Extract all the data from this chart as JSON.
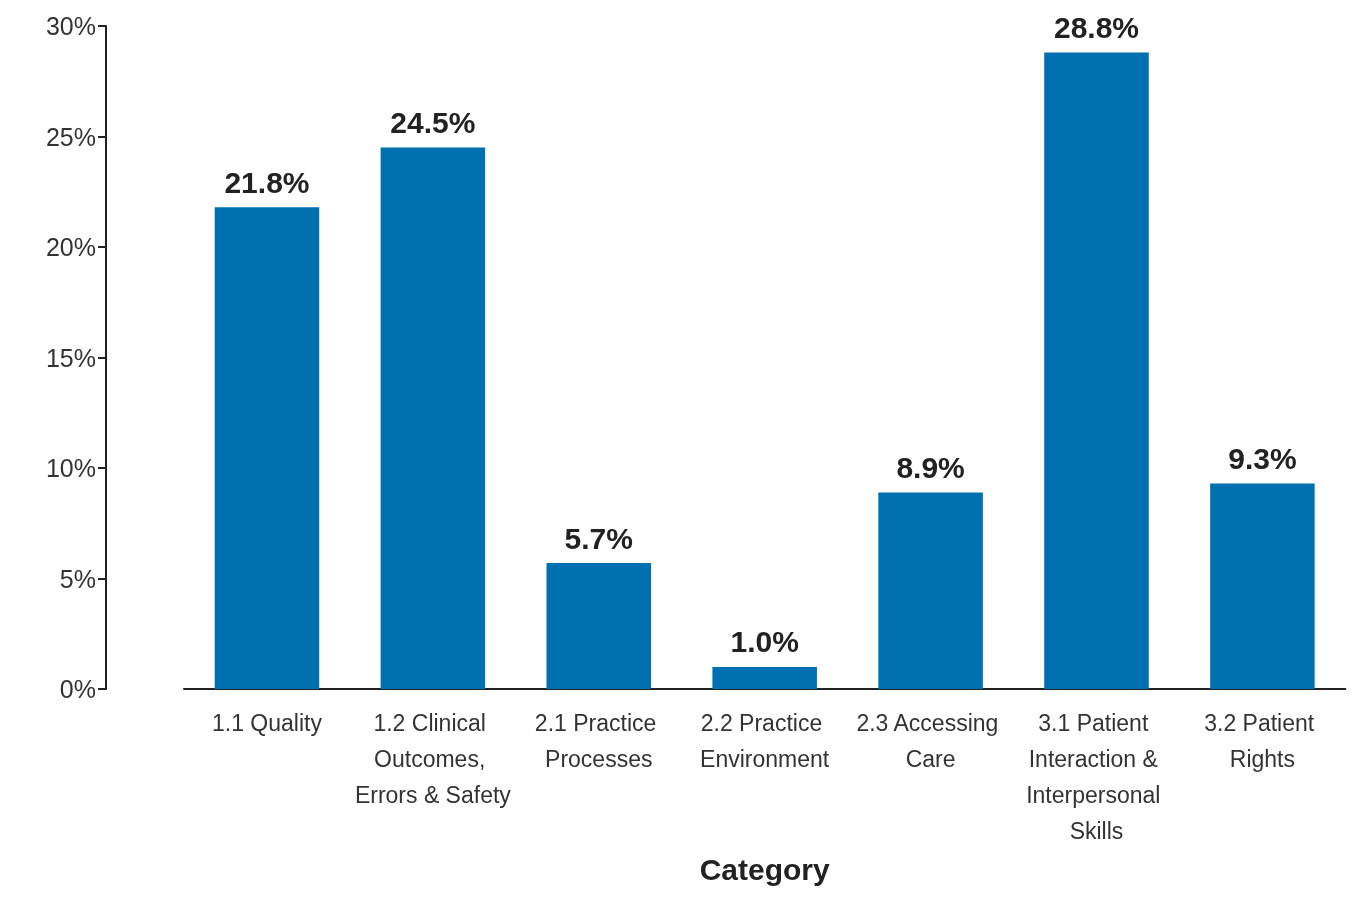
{
  "chart_data": {
    "type": "bar",
    "xlabel": "Category",
    "categories": [
      "1.1 Quality",
      "1.2 Clinical Outcomes, Errors & Safety",
      "2.1 Practice Processes",
      "2.2 Practice Environment",
      "2.3 Accessing Care",
      "3.1 Patient Interaction & Interpersonal Skills",
      "3.2 Patient Rights"
    ],
    "values": [
      21.8,
      24.5,
      5.7,
      1.0,
      8.9,
      28.8,
      9.3
    ],
    "value_labels": [
      "21.8%",
      "24.5%",
      "5.7%",
      "1.0%",
      "8.9%",
      "28.8%",
      "9.3%"
    ],
    "color": "#0070b0",
    "ylim": [
      0,
      30
    ],
    "yticks": [
      {
        "value": 0,
        "label": "0%"
      },
      {
        "value": 5,
        "label": "5%"
      },
      {
        "value": 10,
        "label": "10%"
      },
      {
        "value": 15,
        "label": "15%"
      },
      {
        "value": 20,
        "label": "20%"
      },
      {
        "value": 25,
        "label": "25%"
      },
      {
        "value": 30,
        "label": "30%"
      }
    ],
    "grid": false
  }
}
